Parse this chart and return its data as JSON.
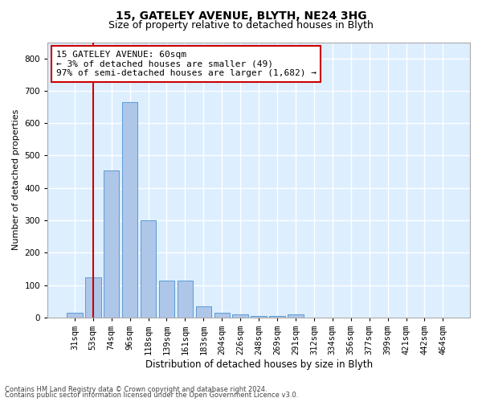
{
  "title1": "15, GATELEY AVENUE, BLYTH, NE24 3HG",
  "title2": "Size of property relative to detached houses in Blyth",
  "xlabel": "Distribution of detached houses by size in Blyth",
  "ylabel": "Number of detached properties",
  "footer1": "Contains HM Land Registry data © Crown copyright and database right 2024.",
  "footer2": "Contains public sector information licensed under the Open Government Licence v3.0.",
  "categories": [
    "31sqm",
    "53sqm",
    "74sqm",
    "96sqm",
    "118sqm",
    "139sqm",
    "161sqm",
    "183sqm",
    "204sqm",
    "226sqm",
    "248sqm",
    "269sqm",
    "291sqm",
    "312sqm",
    "334sqm",
    "356sqm",
    "377sqm",
    "399sqm",
    "421sqm",
    "442sqm",
    "464sqm"
  ],
  "values": [
    15,
    125,
    455,
    665,
    300,
    115,
    115,
    35,
    15,
    10,
    5,
    5,
    10,
    0,
    0,
    0,
    0,
    0,
    0,
    0,
    0
  ],
  "bar_color": "#aec6e8",
  "bar_edge_color": "#5b9bd5",
  "vline_x": 1.0,
  "vline_color": "#cc0000",
  "annotation_text": "15 GATELEY AVENUE: 60sqm\n← 3% of detached houses are smaller (49)\n97% of semi-detached houses are larger (1,682) →",
  "annotation_box_color": "#ffffff",
  "annotation_box_edge": "#cc0000",
  "background_color": "#ddeeff",
  "ylim": [
    0,
    850
  ],
  "yticks": [
    0,
    100,
    200,
    300,
    400,
    500,
    600,
    700,
    800
  ],
  "grid_color": "#ffffff",
  "title1_fontsize": 10,
  "title2_fontsize": 9,
  "xlabel_fontsize": 8.5,
  "ylabel_fontsize": 8,
  "tick_fontsize": 7.5,
  "annotation_fontsize": 8,
  "footer_fontsize": 6
}
